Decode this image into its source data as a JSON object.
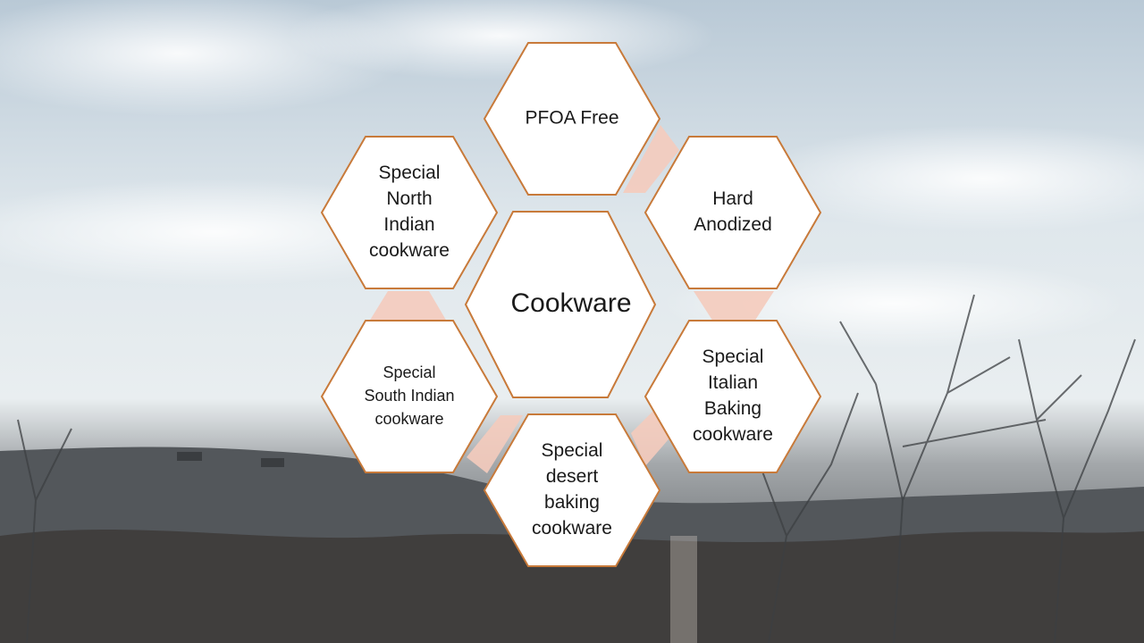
{
  "colors": {
    "hex_outline": "#c87a3a",
    "hex_fill": "#ffffff",
    "connector": "#f4cbbd",
    "sky_top": "#c9d6e0",
    "sky_mid": "#e6edf1",
    "ground": "#4a4d50",
    "text": "#1a1a1a"
  },
  "diagram": {
    "center": {
      "label": [
        "Cookware"
      ]
    },
    "nodes": [
      {
        "id": "pfoa-free",
        "label": [
          "PFOA Free"
        ]
      },
      {
        "id": "hard-anodized",
        "label": [
          "Hard",
          "Anodized"
        ]
      },
      {
        "id": "special-italian-baking",
        "label": [
          "Special",
          "Italian",
          "Baking",
          "cookware"
        ]
      },
      {
        "id": "special-desert-baking",
        "label": [
          "Special",
          "desert",
          "baking",
          "cookware"
        ]
      },
      {
        "id": "special-south-indian",
        "label": [
          "Special",
          "South Indian",
          "cookware"
        ]
      },
      {
        "id": "special-north-indian",
        "label": [
          "Special",
          "North",
          "Indian",
          "cookware"
        ]
      }
    ]
  }
}
